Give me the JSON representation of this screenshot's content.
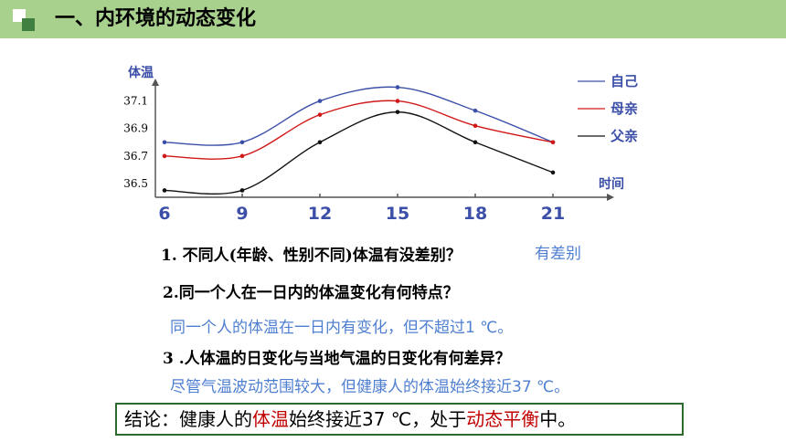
{
  "header": {
    "title": "一、内环境的动态变化"
  },
  "chart_data": {
    "type": "line",
    "ylabel": "体温",
    "xlabel": "时间",
    "categories": [
      "6",
      "9",
      "12",
      "15",
      "18",
      "21"
    ],
    "yticks": [
      "37.1",
      "36.9",
      "36.7",
      "36.5"
    ],
    "ylim": [
      36.4,
      37.25
    ],
    "grid": false,
    "legend_position": "right",
    "series": [
      {
        "name": "自己",
        "color": "#3c4fa8",
        "values": [
          36.8,
          36.8,
          37.1,
          37.2,
          37.03,
          36.8
        ]
      },
      {
        "name": "母亲",
        "color": "#d01818",
        "values": [
          36.7,
          36.7,
          37.0,
          37.1,
          36.92,
          36.8
        ]
      },
      {
        "name": "父亲",
        "color": "#111111",
        "values": [
          36.45,
          36.45,
          36.8,
          37.02,
          36.8,
          36.58
        ]
      }
    ]
  },
  "questions": {
    "q1": "1. 不同人(年龄、性别不同)体温有没差别？",
    "a1": "有差别",
    "q2": "2.同一个人在一日内的体温变化有何特点？",
    "a2": "同一个人的体温在一日内有变化，但不超过1 ℃。",
    "q3": "3 .人体温的日变化与当地气温的日变化有何差异？",
    "a3": "尽管气温波动范围较大，但健康人的体温始终接近37 ℃。"
  },
  "conclusion": {
    "prefix": "结论：健康人的",
    "highlight1": "体温",
    "middle": "始终接近37 ℃，处于",
    "highlight2": "动态平衡",
    "suffix": "中。"
  }
}
